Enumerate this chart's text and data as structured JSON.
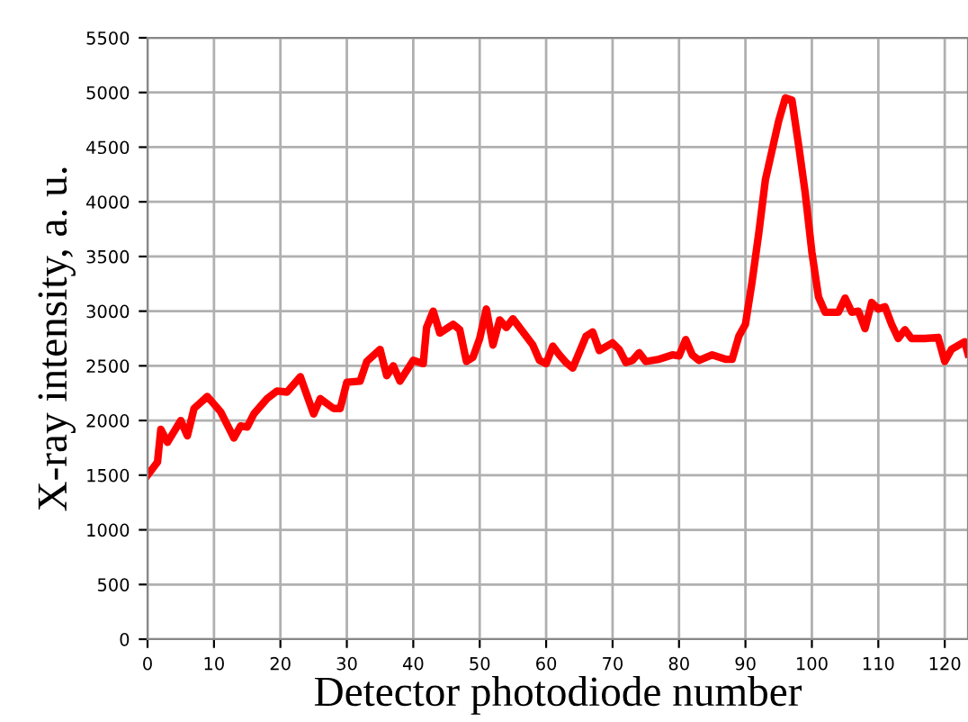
{
  "chart_data": {
    "type": "line",
    "xlabel": "Detector photodiode number",
    "ylabel": "X-ray intensity, a. u.",
    "xlim": [
      0,
      123.5
    ],
    "xticks": [
      0,
      10,
      20,
      30,
      40,
      50,
      60,
      70,
      80,
      90,
      100,
      110,
      120
    ],
    "ylim": [
      0,
      5500
    ],
    "yticks": [
      0,
      500,
      1000,
      1500,
      2000,
      2500,
      3000,
      3500,
      4000,
      4500,
      5000,
      5500
    ],
    "grid": true,
    "marker": "none",
    "line_style": "solid",
    "series": [
      {
        "color": "#ff0000",
        "x": [
          0,
          1.5,
          2,
          3,
          5,
          6,
          7,
          9,
          11,
          13,
          14,
          15,
          16,
          18,
          19.5,
          21,
          23,
          25,
          26,
          28,
          29,
          30,
          32,
          33,
          35,
          36,
          37,
          38,
          40,
          41.5,
          42,
          43,
          44,
          46,
          47,
          48,
          49,
          50,
          51,
          52,
          53,
          54,
          55,
          57,
          58,
          59,
          60,
          61,
          62,
          63,
          64,
          66,
          67,
          68,
          70,
          71,
          72,
          73,
          74,
          75,
          77,
          79,
          80,
          81,
          82,
          83,
          85,
          87,
          88,
          89,
          90,
          91,
          92,
          93,
          94,
          95,
          96,
          97,
          98,
          99,
          100,
          101,
          102,
          104,
          105,
          106,
          107,
          108,
          109,
          110,
          111,
          112,
          113,
          114,
          115,
          117,
          119,
          120,
          121,
          123,
          123.5
        ],
        "values": [
          1500,
          1620,
          1920,
          1800,
          2000,
          1860,
          2110,
          2220,
          2080,
          1840,
          1950,
          1940,
          2060,
          2200,
          2270,
          2260,
          2400,
          2060,
          2200,
          2110,
          2110,
          2350,
          2360,
          2540,
          2650,
          2410,
          2500,
          2360,
          2550,
          2520,
          2850,
          3000,
          2800,
          2880,
          2830,
          2540,
          2580,
          2750,
          3020,
          2690,
          2920,
          2850,
          2930,
          2770,
          2690,
          2550,
          2520,
          2680,
          2600,
          2530,
          2480,
          2770,
          2810,
          2640,
          2710,
          2650,
          2530,
          2550,
          2620,
          2540,
          2560,
          2600,
          2590,
          2740,
          2600,
          2550,
          2600,
          2560,
          2560,
          2770,
          2880,
          3270,
          3710,
          4200,
          4470,
          4740,
          4950,
          4930,
          4520,
          4080,
          3540,
          3130,
          2990,
          2990,
          3120,
          2990,
          3000,
          2840,
          3080,
          3020,
          3040,
          2880,
          2750,
          2830,
          2750,
          2750,
          2760,
          2540,
          2650,
          2720,
          2610
        ]
      }
    ]
  }
}
